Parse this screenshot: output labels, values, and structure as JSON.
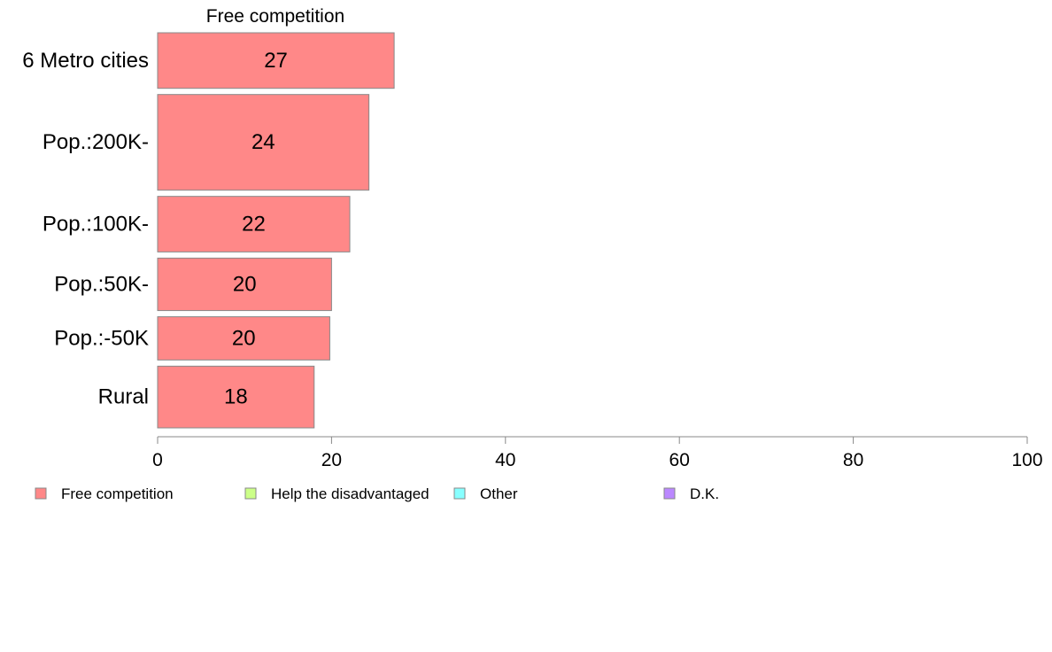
{
  "chart_data": {
    "type": "bar",
    "orientation": "horizontal",
    "title": "Free competition",
    "categories": [
      "6 Metro cities",
      "Pop.:200K-",
      "Pop.:100K-",
      "Pop.:50K-",
      "Pop.:-50K",
      "Rural"
    ],
    "series": [
      {
        "name": "Free competition",
        "color": "#ff8888",
        "values": [
          27.2,
          24.3,
          22.1,
          20.0,
          19.8,
          18.0
        ],
        "labels": [
          "27",
          "24",
          "22",
          "20",
          "20",
          "18"
        ]
      }
    ],
    "bar_widths_relative": [
      0.9,
      1.55,
      0.9,
      0.85,
      0.7,
      1.0
    ],
    "xlim": [
      0,
      100
    ],
    "xticks": [
      0,
      20,
      40,
      60,
      80,
      100
    ],
    "xlabel": "",
    "ylabel": "",
    "grid": false,
    "legend": {
      "position": "bottom",
      "entries": [
        {
          "label": "Free competition",
          "color": "#ff8888"
        },
        {
          "label": "Help the disadvantaged",
          "color": "#ccff88"
        },
        {
          "label": "Other",
          "color": "#88ffff"
        },
        {
          "label": "D.K.",
          "color": "#bb88ff"
        }
      ]
    }
  }
}
